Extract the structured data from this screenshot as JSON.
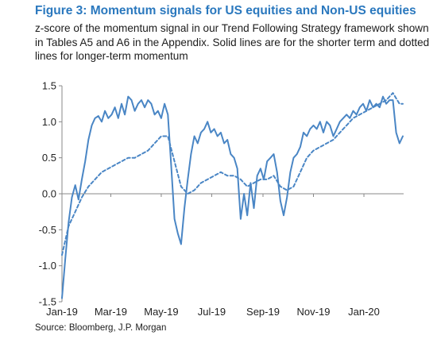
{
  "figure": {
    "title": "Figure 3: Momentum signals for US equities and Non-US equities",
    "subtitle": "z-score of the momentum signal in our Trend Following Strategy framework shown in Tables A5 and A6 in the Appendix. Solid lines are for the shorter term and dotted lines for longer-term momentum",
    "source": "Source:  Bloomberg, J.P. Morgan"
  },
  "colors": {
    "series": "#4a86c5",
    "axis": "#888888",
    "text": "#222222",
    "title": "#2a78be"
  },
  "chart_data": {
    "type": "line",
    "title": "Figure 3: Momentum signals for US equities and Non-US equities",
    "xlabel": "",
    "ylabel": "",
    "ylim": [
      -1.5,
      1.5
    ],
    "xlim": [
      "2019-01-01",
      "2020-02-18"
    ],
    "yticks": [
      1.5,
      1.0,
      0.5,
      0.0,
      -0.5,
      -1.0,
      -1.5
    ],
    "ytick_labels": [
      "1.5",
      "1.0",
      "0.5",
      "0.0",
      "-0.5",
      "-1.0",
      "-1.5"
    ],
    "xticks": [
      "2019-01-01",
      "2019-03-01",
      "2019-05-01",
      "2019-07-01",
      "2019-09-01",
      "2019-11-01",
      "2020-01-01"
    ],
    "xtick_labels": [
      "Jan-19",
      "Mar-19",
      "May-19",
      "Jul-19",
      "Sep-19",
      "Nov-19",
      "Jan-20"
    ],
    "grid": false,
    "legend": "none",
    "series": [
      {
        "style": "solid",
        "x": [
          "2019-01-01",
          "2019-01-05",
          "2019-01-09",
          "2019-01-13",
          "2019-01-17",
          "2019-01-21",
          "2019-01-25",
          "2019-01-29",
          "2019-02-02",
          "2019-02-06",
          "2019-02-10",
          "2019-02-14",
          "2019-02-18",
          "2019-02-22",
          "2019-02-26",
          "2019-03-02",
          "2019-03-06",
          "2019-03-10",
          "2019-03-14",
          "2019-03-18",
          "2019-03-22",
          "2019-03-26",
          "2019-03-30",
          "2019-04-03",
          "2019-04-07",
          "2019-04-11",
          "2019-04-15",
          "2019-04-19",
          "2019-04-23",
          "2019-04-27",
          "2019-05-01",
          "2019-05-05",
          "2019-05-09",
          "2019-05-13",
          "2019-05-17",
          "2019-05-21",
          "2019-05-25",
          "2019-05-29",
          "2019-06-02",
          "2019-06-06",
          "2019-06-10",
          "2019-06-14",
          "2019-06-18",
          "2019-06-22",
          "2019-06-26",
          "2019-06-30",
          "2019-07-04",
          "2019-07-08",
          "2019-07-12",
          "2019-07-16",
          "2019-07-20",
          "2019-07-24",
          "2019-07-28",
          "2019-08-01",
          "2019-08-05",
          "2019-08-09",
          "2019-08-13",
          "2019-08-17",
          "2019-08-21",
          "2019-08-25",
          "2019-08-29",
          "2019-09-02",
          "2019-09-06",
          "2019-09-10",
          "2019-09-14",
          "2019-09-18",
          "2019-09-22",
          "2019-09-26",
          "2019-09-30",
          "2019-10-04",
          "2019-10-08",
          "2019-10-12",
          "2019-10-16",
          "2019-10-20",
          "2019-10-24",
          "2019-10-28",
          "2019-11-01",
          "2019-11-05",
          "2019-11-09",
          "2019-11-13",
          "2019-11-17",
          "2019-11-21",
          "2019-11-25",
          "2019-11-29",
          "2019-12-03",
          "2019-12-07",
          "2019-12-11",
          "2019-12-15",
          "2019-12-19",
          "2019-12-23",
          "2019-12-27",
          "2019-12-31",
          "2020-01-04",
          "2020-01-08",
          "2020-01-12",
          "2020-01-16",
          "2020-01-20",
          "2020-01-24",
          "2020-01-28",
          "2020-02-01",
          "2020-02-05",
          "2020-02-09",
          "2020-02-13",
          "2020-02-17"
        ],
        "y": [
          -1.45,
          -0.9,
          -0.4,
          -0.05,
          0.12,
          -0.08,
          0.2,
          0.45,
          0.75,
          0.95,
          1.05,
          1.08,
          1.0,
          1.15,
          1.05,
          1.1,
          1.2,
          1.05,
          1.25,
          1.1,
          1.35,
          1.3,
          1.15,
          1.25,
          1.3,
          1.2,
          1.3,
          1.25,
          1.1,
          1.15,
          1.05,
          1.25,
          1.1,
          0.4,
          -0.35,
          -0.55,
          -0.7,
          -0.2,
          0.2,
          0.55,
          0.8,
          0.7,
          0.85,
          0.9,
          1.0,
          0.85,
          0.9,
          0.8,
          0.85,
          0.7,
          0.75,
          0.55,
          0.5,
          0.35,
          -0.35,
          0.0,
          -0.3,
          0.15,
          -0.2,
          0.25,
          0.35,
          0.2,
          0.45,
          0.5,
          0.55,
          0.3,
          -0.1,
          -0.3,
          -0.05,
          0.3,
          0.5,
          0.55,
          0.65,
          0.85,
          0.8,
          0.9,
          0.95,
          0.9,
          1.0,
          0.85,
          1.0,
          0.95,
          0.8,
          0.9,
          1.0,
          1.05,
          1.1,
          1.05,
          1.15,
          1.1,
          1.2,
          1.25,
          1.15,
          1.3,
          1.2,
          1.25,
          1.2,
          1.35,
          1.25,
          1.3,
          1.3,
          0.85,
          0.7,
          0.8
        ]
      },
      {
        "style": "dotted",
        "x": [
          "2019-01-01",
          "2019-01-09",
          "2019-01-17",
          "2019-01-25",
          "2019-02-02",
          "2019-02-10",
          "2019-02-18",
          "2019-02-26",
          "2019-03-06",
          "2019-03-14",
          "2019-03-22",
          "2019-03-30",
          "2019-04-07",
          "2019-04-15",
          "2019-04-23",
          "2019-05-01",
          "2019-05-09",
          "2019-05-17",
          "2019-05-25",
          "2019-06-02",
          "2019-06-10",
          "2019-06-18",
          "2019-06-26",
          "2019-07-04",
          "2019-07-12",
          "2019-07-20",
          "2019-07-28",
          "2019-08-05",
          "2019-08-13",
          "2019-08-21",
          "2019-08-29",
          "2019-09-06",
          "2019-09-14",
          "2019-09-22",
          "2019-09-30",
          "2019-10-08",
          "2019-10-16",
          "2019-10-24",
          "2019-11-01",
          "2019-11-09",
          "2019-11-17",
          "2019-11-25",
          "2019-12-03",
          "2019-12-11",
          "2019-12-19",
          "2019-12-27",
          "2020-01-04",
          "2020-01-12",
          "2020-01-20",
          "2020-01-28",
          "2020-02-05",
          "2020-02-13",
          "2020-02-17"
        ],
        "y": [
          -0.85,
          -0.45,
          -0.25,
          -0.05,
          0.1,
          0.2,
          0.3,
          0.35,
          0.4,
          0.45,
          0.5,
          0.5,
          0.55,
          0.6,
          0.7,
          0.8,
          0.8,
          0.45,
          0.1,
          0.0,
          0.05,
          0.15,
          0.2,
          0.25,
          0.3,
          0.25,
          0.25,
          0.2,
          0.1,
          0.15,
          0.2,
          0.2,
          0.25,
          0.1,
          0.05,
          0.1,
          0.3,
          0.5,
          0.6,
          0.65,
          0.7,
          0.75,
          0.85,
          0.95,
          1.05,
          1.1,
          1.15,
          1.2,
          1.25,
          1.3,
          1.4,
          1.25,
          1.25
        ]
      }
    ]
  }
}
